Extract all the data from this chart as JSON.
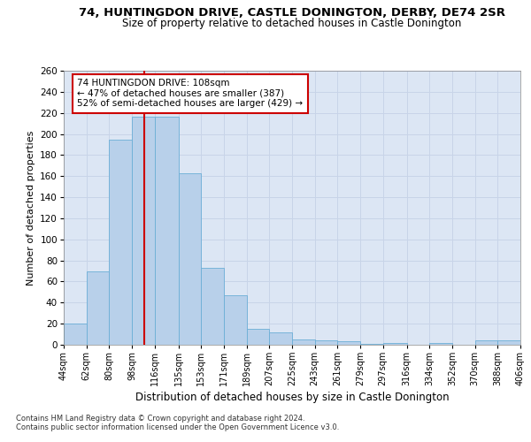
{
  "title1": "74, HUNTINGDON DRIVE, CASTLE DONINGTON, DERBY, DE74 2SR",
  "title2": "Size of property relative to detached houses in Castle Donington",
  "xlabel": "Distribution of detached houses by size in Castle Donington",
  "ylabel": "Number of detached properties",
  "annotation_line1": "74 HUNTINGDON DRIVE: 108sqm",
  "annotation_line2": "← 47% of detached houses are smaller (387)",
  "annotation_line3": "52% of semi-detached houses are larger (429) →",
  "bin_edges": [
    44,
    62,
    80,
    98,
    116,
    135,
    153,
    171,
    189,
    207,
    225,
    243,
    261,
    279,
    297,
    316,
    334,
    352,
    370,
    388,
    406
  ],
  "bar_heights": [
    20,
    70,
    195,
    216,
    216,
    163,
    73,
    47,
    15,
    12,
    5,
    4,
    3,
    1,
    2,
    0,
    2,
    0,
    4,
    4
  ],
  "bar_color": "#b8d0ea",
  "bar_edge_color": "#6baed6",
  "vline_color": "#cc0000",
  "vline_x": 108,
  "annotation_box_facecolor": "#ffffff",
  "annotation_box_edgecolor": "#cc0000",
  "grid_color": "#c8d4e8",
  "background_color": "#dce6f4",
  "ylim": [
    0,
    260
  ],
  "yticks": [
    0,
    20,
    40,
    60,
    80,
    100,
    120,
    140,
    160,
    180,
    200,
    220,
    240,
    260
  ],
  "title1_fontsize": 9.5,
  "title2_fontsize": 8.5,
  "xlabel_fontsize": 8.5,
  "ylabel_fontsize": 8.0,
  "xtick_fontsize": 7.0,
  "ytick_fontsize": 7.5,
  "footer1": "Contains HM Land Registry data © Crown copyright and database right 2024.",
  "footer2": "Contains public sector information licensed under the Open Government Licence v3.0.",
  "footer_fontsize": 6.0
}
